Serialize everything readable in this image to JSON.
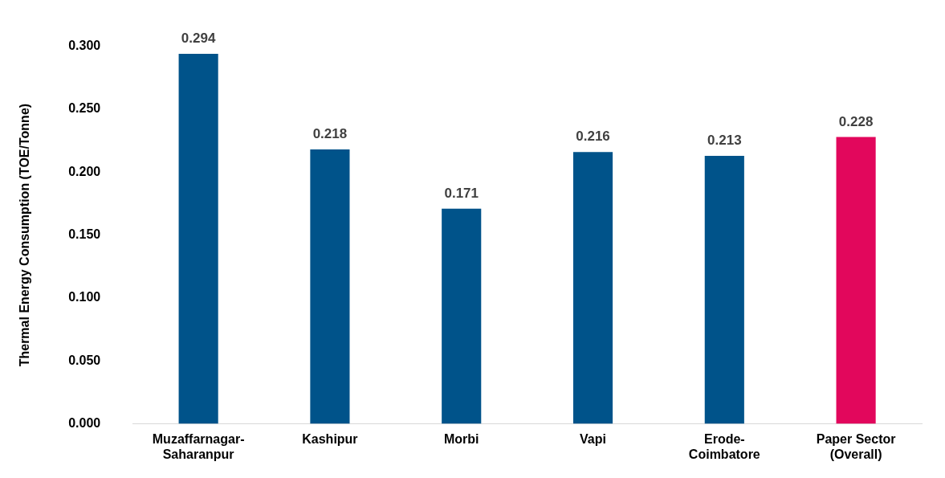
{
  "chart_data": {
    "type": "bar",
    "ylabel": "Thermal Energy Consumption (TOE/Tonne)",
    "categories": [
      "Muzaffarnagar-Saharanpur",
      "Kashipur",
      "Morbi",
      "Vapi",
      "Erode-Coimbatore",
      "Paper Sector (Overall)"
    ],
    "values": [
      0.294,
      0.218,
      0.171,
      0.216,
      0.213,
      0.228
    ],
    "colors": [
      "#00538a",
      "#00538a",
      "#00538a",
      "#00538a",
      "#00538a",
      "#e2075c"
    ],
    "ylim": [
      0,
      0.3
    ],
    "yticks": [
      {
        "value": 0,
        "label": "0.000"
      },
      {
        "value": 0.05,
        "label": "0.050"
      },
      {
        "value": 0.1,
        "label": "0.100"
      },
      {
        "value": 0.15,
        "label": "0.150"
      },
      {
        "value": 0.2,
        "label": "0.200"
      },
      {
        "value": 0.25,
        "label": "0.250"
      },
      {
        "value": 0.3,
        "label": "0.300"
      }
    ],
    "grid": false,
    "legend": false,
    "data_labels": true
  }
}
